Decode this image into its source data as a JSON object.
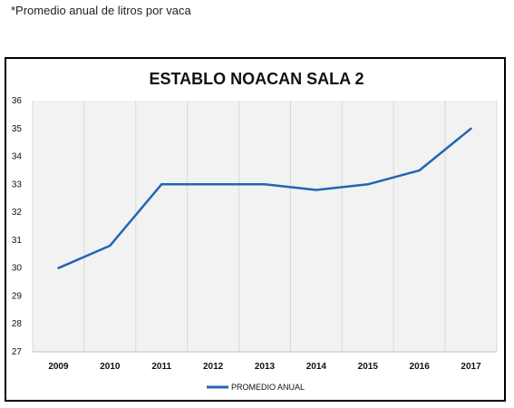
{
  "note": "*Promedio anual de litros por vaca",
  "chart_data": {
    "type": "line",
    "title": "ESTABLO NOACAN SALA 2",
    "categories": [
      "2009",
      "2010",
      "2011",
      "2012",
      "2013",
      "2014",
      "2015",
      "2016",
      "2017"
    ],
    "series": [
      {
        "name": "PROMEDIO ANUAL",
        "values": [
          30,
          30.8,
          33,
          33,
          33,
          32.8,
          33,
          33.5,
          35
        ]
      }
    ],
    "ylim": [
      27,
      36
    ],
    "yticks": [
      "27",
      "28",
      "29",
      "30",
      "31",
      "32",
      "33",
      "34",
      "35",
      "36"
    ],
    "grid": "vertical",
    "legend": "bottom",
    "colors": {
      "line": "#2166b5",
      "plot_bg": "#f2f2f2",
      "grid": "#d9d9d9"
    }
  }
}
